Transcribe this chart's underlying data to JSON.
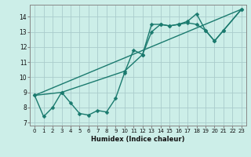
{
  "title": "",
  "xlabel": "Humidex (Indice chaleur)",
  "background_color": "#cceee8",
  "grid_color": "#aacccc",
  "line_color": "#1a7a6e",
  "xlim": [
    -0.5,
    23.5
  ],
  "ylim": [
    6.8,
    14.8
  ],
  "yticks": [
    7,
    8,
    9,
    10,
    11,
    12,
    13,
    14
  ],
  "xticks": [
    0,
    1,
    2,
    3,
    4,
    5,
    6,
    7,
    8,
    9,
    10,
    11,
    12,
    13,
    14,
    15,
    16,
    17,
    18,
    19,
    20,
    21,
    22,
    23
  ],
  "line1_x": [
    0,
    1,
    2,
    3,
    4,
    5,
    6,
    7,
    8,
    9,
    10,
    11,
    12,
    13,
    14,
    15,
    16,
    17,
    18,
    19,
    20,
    21,
    23
  ],
  "line1_y": [
    8.8,
    7.4,
    8.0,
    9.0,
    8.3,
    7.6,
    7.5,
    7.8,
    7.7,
    8.6,
    10.3,
    11.8,
    11.5,
    13.0,
    13.5,
    13.4,
    13.5,
    13.7,
    14.2,
    13.1,
    12.4,
    13.1,
    14.5
  ],
  "line2_x": [
    0,
    3,
    10,
    12,
    13,
    14,
    15,
    16,
    17,
    18,
    19,
    20,
    21,
    23
  ],
  "line2_y": [
    8.8,
    9.0,
    10.4,
    11.5,
    13.5,
    13.5,
    13.4,
    13.5,
    13.6,
    13.5,
    13.1,
    12.4,
    13.1,
    14.5
  ],
  "line3_x": [
    0,
    23
  ],
  "line3_y": [
    8.8,
    14.5
  ],
  "marker_size": 2.5,
  "line_width": 1.0,
  "xlabel_fontsize": 6.0,
  "tick_fontsize": 5.0
}
